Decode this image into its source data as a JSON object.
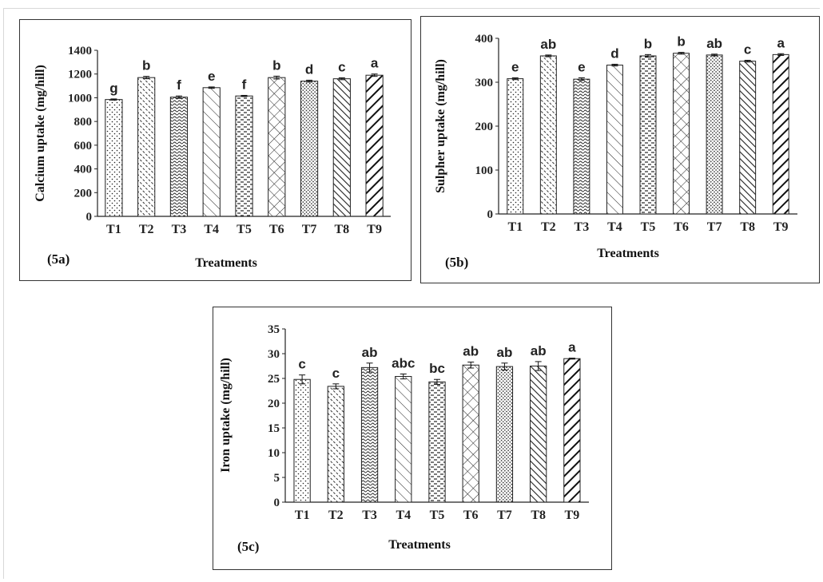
{
  "chart_data": [
    {
      "type": "bar",
      "panel_label": "(5a)",
      "categories": [
        "T1",
        "T2",
        "T3",
        "T4",
        "T5",
        "T6",
        "T7",
        "T8",
        "T9"
      ],
      "values": [
        985,
        1170,
        1005,
        1085,
        1015,
        1170,
        1140,
        1160,
        1190
      ],
      "errors": [
        5,
        10,
        10,
        6,
        5,
        12,
        8,
        8,
        10
      ],
      "significance": [
        "g",
        "b",
        "f",
        "e",
        "f",
        "b",
        "d",
        "c",
        "a"
      ],
      "xlabel": "Treatments",
      "ylabel": "Calcium uptake (mg/hill)",
      "ylim": [
        0,
        1400
      ],
      "yticks": [
        0,
        200,
        400,
        600,
        800,
        1000,
        1200,
        1400
      ],
      "grid": false
    },
    {
      "type": "bar",
      "panel_label": "(5b)",
      "categories": [
        "T1",
        "T2",
        "T3",
        "T4",
        "T5",
        "T6",
        "T7",
        "T8",
        "T9"
      ],
      "values": [
        308,
        360,
        307,
        339,
        360,
        366,
        362,
        348,
        363
      ],
      "errors": [
        2,
        2,
        3,
        2,
        3,
        2,
        2,
        2,
        2
      ],
      "significance": [
        "e",
        "ab",
        "e",
        "d",
        "b",
        "b",
        "ab",
        "c",
        "a"
      ],
      "xlabel": "Treatments",
      "ylabel": "Sulpher uptake (mg/hill)",
      "ylim": [
        0,
        400
      ],
      "yticks": [
        0,
        100,
        200,
        300,
        400
      ],
      "grid": false
    },
    {
      "type": "bar",
      "panel_label": "(5c)",
      "categories": [
        "T1",
        "T2",
        "T3",
        "T4",
        "T5",
        "T6",
        "T7",
        "T8",
        "T9"
      ],
      "values": [
        24.8,
        23.4,
        27.2,
        25.4,
        24.3,
        27.7,
        27.4,
        27.5,
        29.0
      ],
      "errors": [
        0.9,
        0.5,
        0.9,
        0.5,
        0.5,
        0.6,
        0.7,
        0.9,
        0.1
      ],
      "significance": [
        "c",
        "c",
        "ab",
        "abc",
        "bc",
        "ab",
        "ab",
        "ab",
        "a"
      ],
      "xlabel": "Treatments",
      "ylabel": "Iron uptake (mg/hill)",
      "ylim": [
        0,
        35
      ],
      "yticks": [
        0,
        5,
        10,
        15,
        20,
        25,
        30,
        35
      ],
      "grid": false
    }
  ]
}
